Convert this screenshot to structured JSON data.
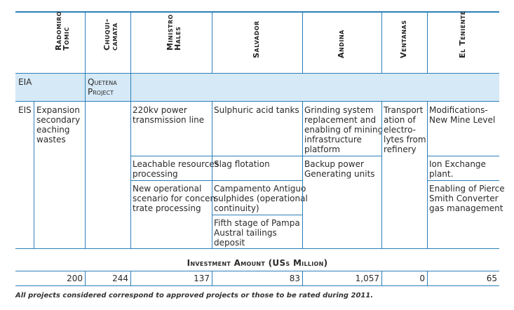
{
  "columns": [
    {
      "label": "Radomiro\nTomic"
    },
    {
      "label": "Chuqui-\ncamata"
    },
    {
      "label": "Ministro\nHales"
    },
    {
      "label": "Salvador"
    },
    {
      "label": "Andina"
    },
    {
      "label": "Ventanas"
    },
    {
      "label": "El Teniente"
    }
  ],
  "eia": {
    "label": "EIA",
    "chuquicamata": "Quetena\nProject"
  },
  "eis": {
    "label": "EIS",
    "radomiro_tomic": "Expansion\nsecondary\neaching\nwastes",
    "ministro_hales": [
      "220kv power\ntransmission line",
      "Leachable resources\nprocessing",
      "New operational\nscenario for concen-\ntrate processing"
    ],
    "salvador": [
      "Sulphuric acid tanks",
      "Slag flotation",
      "Campamento Antiguo\nsulphides (operational\ncontinuity)",
      "Fifth stage of Pampa\nAustral tailings\ndeposit"
    ],
    "andina": [
      "Grinding system\nreplacement and\nenabling of mining\ninfrastructure\nplatform",
      "Backup power\nGenerating units"
    ],
    "ventanas": "Transport\nation of\nelectro-\nlytes from\nrefinery",
    "el_teniente": [
      "Modifications-\nNew Mine Level",
      "Ion Exchange\nplant.",
      "Enabling of Pierce\nSmith Converter\ngas management"
    ]
  },
  "investment": {
    "title": "Investment Amount (USs Million)",
    "values": [
      "200",
      "244",
      "137",
      "83",
      "1,057",
      "0",
      "65"
    ]
  },
  "footnote": "All projects considered correspond to approved projects or those to be rated during 2011."
}
